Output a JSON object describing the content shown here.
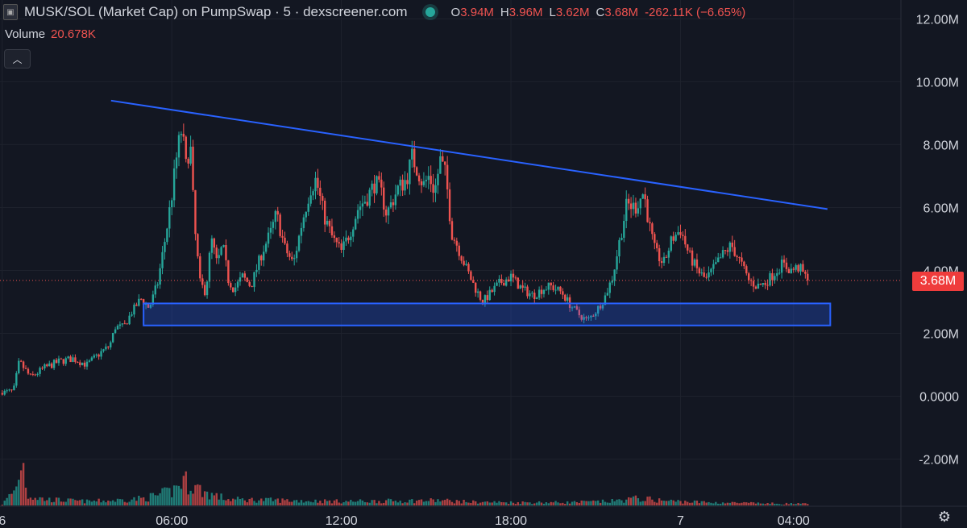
{
  "header": {
    "title": "MUSK/SOL (Market Cap) on PumpSwap · 5 · dexscreener.com",
    "logo_icon": "token-logo-icon",
    "ohlc": {
      "o_label": "O",
      "o_value": "3.94M",
      "h_label": "H",
      "h_value": "3.96M",
      "l_label": "L",
      "l_value": "3.62M",
      "c_label": "C",
      "c_value": "3.68M",
      "change": "-262.11K (−6.65%)"
    }
  },
  "volume_legend": {
    "label": "Volume",
    "value": "20.678K"
  },
  "current_price_label": "3.68M",
  "colors": {
    "background": "#131722",
    "up": "#26a69a",
    "down": "#ef5350",
    "trendline": "#2962ff",
    "support_zone": "#2962ff"
  },
  "chart_data": {
    "type": "candlestick",
    "title": "",
    "ylim": [
      -3.5,
      12.6
    ],
    "y_unit": "M",
    "y_ticks": [
      "12.00M",
      "10.00M",
      "8.00M",
      "6.00M",
      "4.00M",
      "2.00M",
      "0.0000",
      "-2.00M"
    ],
    "y_tick_values": [
      12,
      10,
      8,
      6,
      4,
      2,
      0,
      -2
    ],
    "x_ticks": [
      "6",
      "06:00",
      "12:00",
      "18:00",
      "7",
      "04:00"
    ],
    "x_tick_hours": [
      0,
      6,
      12,
      18,
      24,
      28
    ],
    "xlim_hours": [
      -0.08,
      31.8
    ],
    "candle_interval_minutes": 5,
    "close_path": [
      [
        0.0,
        0.1
      ],
      [
        0.4,
        0.15
      ],
      [
        0.6,
        1.1
      ],
      [
        1.0,
        0.6
      ],
      [
        1.5,
        0.9
      ],
      [
        2.0,
        1.1
      ],
      [
        2.5,
        1.2
      ],
      [
        3.0,
        1.0
      ],
      [
        3.5,
        1.4
      ],
      [
        3.8,
        1.6
      ],
      [
        4.0,
        2.2
      ],
      [
        4.3,
        2.2
      ],
      [
        4.6,
        2.7
      ],
      [
        4.9,
        3.1
      ],
      [
        5.2,
        2.8
      ],
      [
        5.5,
        3.6
      ],
      [
        5.8,
        5.2
      ],
      [
        6.0,
        6.4
      ],
      [
        6.2,
        7.8
      ],
      [
        6.35,
        8.5
      ],
      [
        6.5,
        7.3
      ],
      [
        6.65,
        8.1
      ],
      [
        6.8,
        5.4
      ],
      [
        7.0,
        3.6
      ],
      [
        7.2,
        3.3
      ],
      [
        7.4,
        5.0
      ],
      [
        7.6,
        4.2
      ],
      [
        7.8,
        4.8
      ],
      [
        8.0,
        3.7
      ],
      [
        8.2,
        3.4
      ],
      [
        8.5,
        3.8
      ],
      [
        8.8,
        3.5
      ],
      [
        9.2,
        4.6
      ],
      [
        9.5,
        5.2
      ],
      [
        9.7,
        5.8
      ],
      [
        10.0,
        4.7
      ],
      [
        10.3,
        4.2
      ],
      [
        10.6,
        5.5
      ],
      [
        10.9,
        6.6
      ],
      [
        11.1,
        6.9
      ],
      [
        11.4,
        5.7
      ],
      [
        11.7,
        5.0
      ],
      [
        12.0,
        4.6
      ],
      [
        12.3,
        5.2
      ],
      [
        12.6,
        6.0
      ],
      [
        12.9,
        6.3
      ],
      [
        13.2,
        6.8
      ],
      [
        13.4,
        6.5
      ],
      [
        13.6,
        5.8
      ],
      [
        13.8,
        6.2
      ],
      [
        14.0,
        6.6
      ],
      [
        14.3,
        6.9
      ],
      [
        14.5,
        7.6
      ],
      [
        14.7,
        7.2
      ],
      [
        14.9,
        6.7
      ],
      [
        15.1,
        7.0
      ],
      [
        15.3,
        6.5
      ],
      [
        15.5,
        7.5
      ],
      [
        15.7,
        7.0
      ],
      [
        15.9,
        5.2
      ],
      [
        16.1,
        4.8
      ],
      [
        16.4,
        4.1
      ],
      [
        16.7,
        3.5
      ],
      [
        17.0,
        3.0
      ],
      [
        17.3,
        3.3
      ],
      [
        17.6,
        3.6
      ],
      [
        18.0,
        3.8
      ],
      [
        18.4,
        3.4
      ],
      [
        18.8,
        3.2
      ],
      [
        19.1,
        3.4
      ],
      [
        19.4,
        3.5
      ],
      [
        19.8,
        3.3
      ],
      [
        20.1,
        2.9
      ],
      [
        20.4,
        2.6
      ],
      [
        20.7,
        2.4
      ],
      [
        21.0,
        2.7
      ],
      [
        21.3,
        3.1
      ],
      [
        21.6,
        3.8
      ],
      [
        21.9,
        5.2
      ],
      [
        22.1,
        6.1
      ],
      [
        22.4,
        6.0
      ],
      [
        22.7,
        6.5
      ],
      [
        22.9,
        5.4
      ],
      [
        23.1,
        4.6
      ],
      [
        23.4,
        4.2
      ],
      [
        23.7,
        5.0
      ],
      [
        24.0,
        5.3
      ],
      [
        24.3,
        4.5
      ],
      [
        24.6,
        4.0
      ],
      [
        24.9,
        3.7
      ],
      [
        25.2,
        4.1
      ],
      [
        25.5,
        4.5
      ],
      [
        25.8,
        4.8
      ],
      [
        26.1,
        4.3
      ],
      [
        26.4,
        3.7
      ],
      [
        26.7,
        3.5
      ],
      [
        27.0,
        3.6
      ],
      [
        27.3,
        3.9
      ],
      [
        27.6,
        4.2
      ],
      [
        27.9,
        4.0
      ],
      [
        28.2,
        4.1
      ],
      [
        28.5,
        3.68
      ]
    ],
    "volume_path": [
      [
        0.0,
        0.02
      ],
      [
        0.5,
        0.35
      ],
      [
        0.7,
        1.0
      ],
      [
        0.9,
        0.2
      ],
      [
        1.5,
        0.12
      ],
      [
        3.0,
        0.08
      ],
      [
        4.0,
        0.1
      ],
      [
        5.0,
        0.14
      ],
      [
        5.5,
        0.2
      ],
      [
        6.0,
        0.28
      ],
      [
        6.4,
        0.5
      ],
      [
        6.8,
        0.38
      ],
      [
        7.2,
        0.25
      ],
      [
        8.0,
        0.12
      ],
      [
        10.0,
        0.1
      ],
      [
        12.0,
        0.08
      ],
      [
        14.0,
        0.09
      ],
      [
        15.5,
        0.1
      ],
      [
        16.5,
        0.07
      ],
      [
        18.0,
        0.06
      ],
      [
        20.0,
        0.06
      ],
      [
        21.5,
        0.08
      ],
      [
        22.5,
        0.14
      ],
      [
        23.5,
        0.09
      ],
      [
        25.0,
        0.06
      ],
      [
        27.0,
        0.04
      ],
      [
        28.5,
        0.03
      ]
    ],
    "series": [
      {
        "name": "",
        "type": "trendline",
        "points": [
          [
            3.85,
            9.4
          ],
          [
            29.2,
            5.95
          ]
        ]
      },
      {
        "name": "",
        "type": "support_zone",
        "x": [
          5.0,
          29.3
        ],
        "y": [
          2.25,
          2.95
        ]
      }
    ],
    "last_price": 3.68,
    "grid": true,
    "legend": "top-left"
  }
}
